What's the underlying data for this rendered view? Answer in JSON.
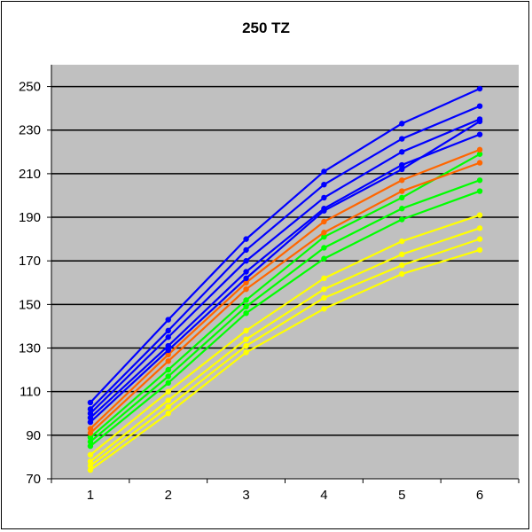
{
  "chart_data": {
    "type": "line",
    "title": "250 TZ",
    "x": [
      1,
      2,
      3,
      4,
      5,
      6
    ],
    "xticks": [
      "1",
      "2",
      "3",
      "4",
      "5",
      "6"
    ],
    "yticks": [
      "70",
      "90",
      "110",
      "130",
      "150",
      "170",
      "190",
      "210",
      "230",
      "250"
    ],
    "ylim": [
      70,
      260
    ],
    "grid": true,
    "legend": "none",
    "plot_background": "#C0C0C0",
    "series": [
      {
        "color": "#0000FF",
        "values": [
          105,
          143,
          180,
          211,
          233,
          249
        ]
      },
      {
        "color": "#0000FF",
        "values": [
          102,
          138,
          175,
          205,
          226,
          241
        ]
      },
      {
        "color": "#0000FF",
        "values": [
          100,
          135,
          170,
          199,
          220,
          235
        ]
      },
      {
        "color": "#0000FF",
        "values": [
          98,
          131,
          165,
          194,
          214,
          228
        ]
      },
      {
        "color": "#0000FF",
        "values": [
          96,
          129,
          162,
          193,
          212,
          234
        ]
      },
      {
        "color": "#FF6600",
        "values": [
          93,
          127,
          160,
          188,
          207,
          221
        ]
      },
      {
        "color": "#FF6600",
        "values": [
          91,
          124,
          157,
          183,
          202,
          215
        ]
      },
      {
        "color": "#00FF00",
        "values": [
          89,
          120,
          152,
          181,
          199,
          219
        ]
      },
      {
        "color": "#00FF00",
        "values": [
          87,
          117,
          149,
          176,
          194,
          207
        ]
      },
      {
        "color": "#00FF00",
        "values": [
          85,
          114,
          146,
          171,
          189,
          202
        ]
      },
      {
        "color": "#FFFF00",
        "values": [
          81,
          110,
          138,
          162,
          179,
          191
        ]
      },
      {
        "color": "#FFFF00",
        "values": [
          78,
          106,
          134,
          157,
          173,
          185
        ]
      },
      {
        "color": "#FFFF00",
        "values": [
          76,
          103,
          131,
          153,
          168,
          180
        ]
      },
      {
        "color": "#FFFF00",
        "values": [
          74,
          100,
          128,
          148,
          164,
          175
        ]
      }
    ]
  }
}
